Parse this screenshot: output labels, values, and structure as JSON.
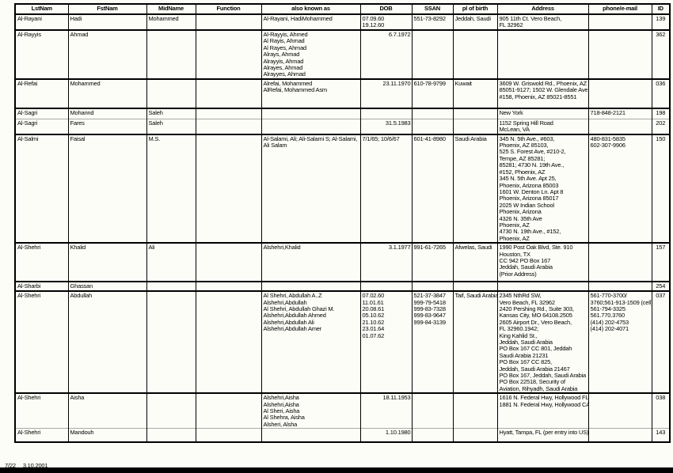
{
  "document": {
    "columns": [
      "LstNam",
      "FstNam",
      "MidName",
      "Function",
      "also known as",
      "DOB",
      "SSAN",
      "pl of birth",
      "Address",
      "phone/e-mail",
      "ID"
    ],
    "rows": [
      {
        "sep": "thick",
        "lstnam": "Al-Rayani",
        "fstnam": "Hadi",
        "midname": "Mohammed",
        "function": "",
        "aka": [
          "Al-Rayani, HadiMohammed"
        ],
        "dob": [
          "07.09.60",
          "19.12.60"
        ],
        "dob_align": "left",
        "ssan": [
          "551-73-8292"
        ],
        "birth": "Jeddah, Saudi",
        "address": [
          "905 11th Ct. Vero Beach,",
          "FL 32962"
        ],
        "phone": [],
        "id": "139"
      },
      {
        "sep": "thick",
        "lstnam": "Al-Rayyis",
        "fstnam": "Ahmad",
        "midname": "",
        "function": "",
        "aka": [
          "Al-Rayyis, Ahmed",
          "Al Rayis, Ahmad",
          "Al Rayes, Ahmad",
          "Alrays, Ahmad",
          "Alrayyis, Ahmad",
          "Alrayes, Ahmad",
          "Alrayyes, Ahmad"
        ],
        "dob": [
          "6.7.1972"
        ],
        "dob_align": "right",
        "ssan": [],
        "birth": "",
        "address": [],
        "phone": [],
        "id": "362"
      },
      {
        "sep": "thick",
        "lstnam": "Al-Refai",
        "fstnam": "Mohammed",
        "midname": "",
        "function": "",
        "aka": [
          "Alrefai, Mohammed",
          "AlRefai, Mohammed Asm"
        ],
        "dob": [
          "23.11.1970"
        ],
        "dob_align": "right",
        "ssan": [
          "610-78-9799"
        ],
        "birth": "Kuwait",
        "address": [
          "3609 W. Griswold Rd., Phoenix, AZ",
          "85051-9127; 1502 W. Glendale Ave",
          "#158, Phoenix, AZ 85021-8551"
        ],
        "phone": [],
        "id": "036"
      },
      {
        "sep": "thick",
        "lstnam": "Al-Sagri",
        "fstnam": "Mohannd",
        "midname": "Saleh",
        "function": "",
        "aka": [],
        "dob": [],
        "dob_align": "right",
        "ssan": [],
        "birth": "",
        "address": [
          "New York"
        ],
        "phone": [
          "718-848-2121"
        ],
        "id": "198"
      },
      {
        "sep": "thin",
        "lstnam": "Al-Sagri",
        "fstnam": "Fares",
        "midname": "Saleh",
        "function": "",
        "aka": [],
        "dob": [
          "31.5.1983"
        ],
        "dob_align": "right",
        "ssan": [],
        "birth": "",
        "address": [
          "1152 Spring Hill Road",
          "McLean, VA"
        ],
        "phone": [],
        "id": "202"
      },
      {
        "sep": "thick",
        "lstnam": "Al-Salmi",
        "fstnam": "Faisal",
        "midname": "M.S.",
        "function": "",
        "aka": [
          "Al-Salami, Ali; Ali-Salami S; Al-Salami,",
          "Ali Salam"
        ],
        "dob": [
          "7/1/65; 10/6/67"
        ],
        "dob_align": "left",
        "ssan": [
          "601-41-8980"
        ],
        "birth": "Saudi Arabia",
        "address": [
          "345 N. 5th Ave., #603,",
          "Phoenix, AZ 85103,",
          "525 S. Forest Ave, #210-2,",
          "Tempe, AZ 85281;",
          "85281; 4730 N. 19th Ave.,",
          "#152, Phoenix, AZ",
          "345 N. 5th Ave. Apt 25,",
          "Phoenix, Arizona 85003",
          "1601 W. Denton Ln. Apt 8",
          "Phoenix, Arizona 85017",
          "2025 W Indian School",
          "Phoenix, Arizona",
          "4326 N. 35th Ave",
          "Phoenix, AZ",
          "4730 N. 19th Ave., #152,",
          "Phoenix, AZ"
        ],
        "phone": [
          "480-831-5835",
          "602-307-9906"
        ],
        "id": "150"
      },
      {
        "sep": "thick",
        "lstnam": "Al-Shehri",
        "fstnam": "Khalid",
        "midname": "Ali",
        "function": "",
        "aka": [
          "Alshehri,Khalid"
        ],
        "dob": [
          "3.1.1977"
        ],
        "dob_align": "right",
        "ssan": [
          "991-61-7265"
        ],
        "birth": "Afwelas, Saudi",
        "address": [
          "1990 Post Oak Blvd, Ste. 910",
          "Houston, TX",
          "CC 942 PO Box 167",
          "Jeddah, Saudi Arabia",
          "(Prior Address)"
        ],
        "phone": [],
        "id": "157"
      },
      {
        "sep": "thick",
        "lstnam": "Al-Sharbi",
        "fstnam": "Ghassan",
        "midname": "",
        "function": "",
        "aka": [],
        "dob": [],
        "dob_align": "right",
        "ssan": [],
        "birth": "",
        "address": [],
        "phone": [],
        "id": "254"
      },
      {
        "sep": "thick",
        "lstnam": "Al-Shehri",
        "fstnam": "Abdullah",
        "midname": "",
        "function": "",
        "aka": [
          "Al Shehri, Abdullah A..Z",
          "Alshehri,Abdullah",
          "Al Shehri, Abdullah Ghazi M.",
          "Alshehri,Abdullah Ahmed",
          "Alshehri,Abdullah Ali",
          "Alshehri,Abdullah Amer"
        ],
        "dob": [
          "07.02.60",
          "11.01.61",
          "20.08.61",
          "05.10.62",
          "21.10.62",
          "23.01.64",
          "01.07.62"
        ],
        "dob_align": "left",
        "ssan": [
          "521-37-3847",
          "999-79-5418",
          "999-83-7328",
          "999-83-9647",
          "999-84-3139"
        ],
        "birth": "Taif, Saudi Arabia",
        "address": [
          "2345 NthRd SW,",
          "Vero Beach, FL 32962",
          "2420 Pershing Rd., Suite 303,",
          "Kansas City, MO 64108.2505",
          "2605 Airport Dr., Vero Beach,",
          "FL 32960.1942;",
          "King Kahlid St.,",
          "Jeddah, Saudi Arabia",
          "PO Box 167 CC 801, Jeddah",
          "Saudi Arabia 21231",
          "PO Box 167 CC 825,",
          "Jeddah, Saudi Arabia 21467",
          "PO Box 167, Jeddah, Saudi Arabia",
          "PO Box 22518, Security of",
          "Aviation, Rihyadh, Saudi Arabia"
        ],
        "phone": [
          "561-770-3700/",
          "3760;561-913-1509 (cell)",
          "561-794-3325",
          "561.770.3760",
          "(414) 202-4753",
          "(414) 202-4071"
        ],
        "id": "037"
      },
      {
        "sep": "thick",
        "lstnam": "Al-Shehri",
        "fstnam": "Aisha",
        "midname": "",
        "function": "",
        "aka": [
          "Alshehri,Aisha",
          "Alshehri,Aisha",
          "Al Sheri, Aisha",
          "Al Shehra, Aisha",
          "Alsheri, Alsha"
        ],
        "dob": [
          "18.11.1953"
        ],
        "dob_align": "right",
        "ssan": [],
        "birth": "",
        "address": [
          "1616 N. Federal Hwy, Hollywood FL;",
          "1881 N. Federal Hwy, Hollywood CA"
        ],
        "phone": [],
        "id": "038"
      },
      {
        "sep": "thin",
        "lstnam": "Al-Shehri",
        "fstnam": "Mandouh",
        "midname": "",
        "function": "",
        "aka": [],
        "dob": [
          "1.10.1980"
        ],
        "dob_align": "right",
        "ssan": [],
        "birth": "",
        "address": [
          "Hyatt, Tampa, FL (per entry into US)"
        ],
        "phone": [],
        "id": "143"
      }
    ],
    "footer": {
      "page": "7/22",
      "date": "3.10.2001"
    }
  }
}
